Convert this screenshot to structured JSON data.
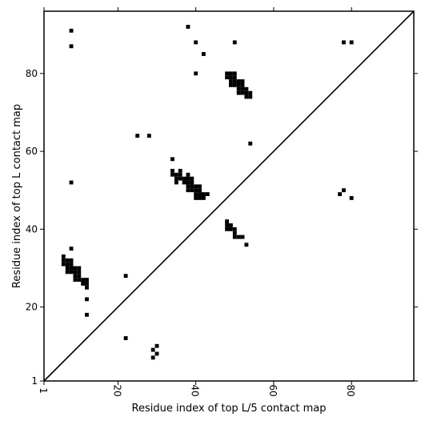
{
  "chart_data": {
    "type": "scatter",
    "title": "",
    "xlabel": "Residue index of top L/5 contact map",
    "ylabel": "Residue index of top L contact map",
    "xlim": [
      1,
      96
    ],
    "ylim": [
      1,
      96
    ],
    "xticks": [
      "1",
      "20",
      "40",
      "60",
      "80"
    ],
    "yticks": [
      "1",
      "20",
      "40",
      "60",
      "80"
    ],
    "grid": false,
    "diagonal": true,
    "marker_color": "#000000",
    "series": [
      {
        "values": [
          [
            8,
            91
          ],
          [
            8,
            87
          ],
          [
            38,
            92
          ],
          [
            40,
            88
          ],
          [
            50,
            88
          ],
          [
            42,
            85
          ],
          [
            78,
            88
          ],
          [
            80,
            88
          ],
          [
            40,
            80
          ],
          [
            48,
            80
          ],
          [
            49,
            80
          ],
          [
            50,
            80
          ],
          [
            48,
            79
          ],
          [
            49,
            79
          ],
          [
            50,
            79
          ],
          [
            49,
            78
          ],
          [
            50,
            78
          ],
          [
            51,
            78
          ],
          [
            52,
            78
          ],
          [
            49,
            77
          ],
          [
            50,
            77
          ],
          [
            51,
            77
          ],
          [
            52,
            77
          ],
          [
            51,
            76
          ],
          [
            52,
            76
          ],
          [
            53,
            76
          ],
          [
            51,
            75
          ],
          [
            52,
            75
          ],
          [
            53,
            75
          ],
          [
            54,
            75
          ],
          [
            53,
            74
          ],
          [
            54,
            74
          ],
          [
            25,
            64
          ],
          [
            28,
            64
          ],
          [
            54,
            62
          ],
          [
            34,
            58
          ],
          [
            8,
            52
          ],
          [
            34,
            55
          ],
          [
            36,
            55
          ],
          [
            34,
            54
          ],
          [
            35,
            54
          ],
          [
            36,
            54
          ],
          [
            38,
            54
          ],
          [
            35,
            53
          ],
          [
            36,
            53
          ],
          [
            37,
            53
          ],
          [
            38,
            53
          ],
          [
            39,
            53
          ],
          [
            35,
            52
          ],
          [
            37,
            52
          ],
          [
            38,
            52
          ],
          [
            39,
            52
          ],
          [
            38,
            51
          ],
          [
            39,
            51
          ],
          [
            40,
            51
          ],
          [
            41,
            51
          ],
          [
            38,
            50
          ],
          [
            39,
            50
          ],
          [
            40,
            50
          ],
          [
            41,
            50
          ],
          [
            40,
            49
          ],
          [
            41,
            49
          ],
          [
            42,
            49
          ],
          [
            43,
            49
          ],
          [
            40,
            48
          ],
          [
            41,
            48
          ],
          [
            42,
            48
          ],
          [
            78,
            50
          ],
          [
            77,
            49
          ],
          [
            80,
            48
          ],
          [
            48,
            42
          ],
          [
            48,
            41
          ],
          [
            49,
            41
          ],
          [
            48,
            40
          ],
          [
            49,
            40
          ],
          [
            50,
            40
          ],
          [
            50,
            39
          ],
          [
            50,
            38
          ],
          [
            51,
            38
          ],
          [
            52,
            38
          ],
          [
            53,
            36
          ],
          [
            8,
            35
          ],
          [
            6,
            33
          ],
          [
            6,
            32
          ],
          [
            7,
            32
          ],
          [
            8,
            32
          ],
          [
            6,
            31
          ],
          [
            7,
            31
          ],
          [
            8,
            31
          ],
          [
            7,
            30
          ],
          [
            8,
            30
          ],
          [
            9,
            30
          ],
          [
            10,
            30
          ],
          [
            7,
            29
          ],
          [
            8,
            29
          ],
          [
            9,
            29
          ],
          [
            10,
            29
          ],
          [
            9,
            28
          ],
          [
            10,
            28
          ],
          [
            22,
            28
          ],
          [
            9,
            27
          ],
          [
            10,
            27
          ],
          [
            11,
            27
          ],
          [
            12,
            27
          ],
          [
            11,
            26
          ],
          [
            12,
            26
          ],
          [
            12,
            25
          ],
          [
            12,
            22
          ],
          [
            12,
            18
          ],
          [
            22,
            12
          ],
          [
            30,
            10
          ],
          [
            29,
            9
          ],
          [
            30,
            8
          ],
          [
            29,
            7
          ]
        ]
      }
    ]
  }
}
